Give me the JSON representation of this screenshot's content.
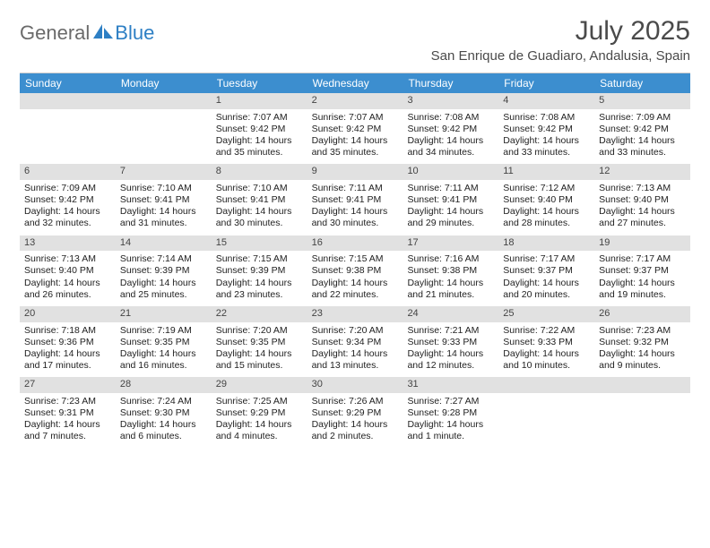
{
  "logo": {
    "text1": "General",
    "text2": "Blue"
  },
  "title": "July 2025",
  "location": "San Enrique de Guadiaro, Andalusia, Spain",
  "colors": {
    "header_bg": "#3c8ecf",
    "daynum_bg": "#e1e1e1",
    "logo_gray": "#6a6a6a",
    "logo_blue": "#2d7fc4"
  },
  "day_names": [
    "Sunday",
    "Monday",
    "Tuesday",
    "Wednesday",
    "Thursday",
    "Friday",
    "Saturday"
  ],
  "weeks": [
    [
      {
        "n": "",
        "sr": "",
        "ss": "",
        "dl": ""
      },
      {
        "n": "",
        "sr": "",
        "ss": "",
        "dl": ""
      },
      {
        "n": "1",
        "sr": "Sunrise: 7:07 AM",
        "ss": "Sunset: 9:42 PM",
        "dl": "Daylight: 14 hours and 35 minutes."
      },
      {
        "n": "2",
        "sr": "Sunrise: 7:07 AM",
        "ss": "Sunset: 9:42 PM",
        "dl": "Daylight: 14 hours and 35 minutes."
      },
      {
        "n": "3",
        "sr": "Sunrise: 7:08 AM",
        "ss": "Sunset: 9:42 PM",
        "dl": "Daylight: 14 hours and 34 minutes."
      },
      {
        "n": "4",
        "sr": "Sunrise: 7:08 AM",
        "ss": "Sunset: 9:42 PM",
        "dl": "Daylight: 14 hours and 33 minutes."
      },
      {
        "n": "5",
        "sr": "Sunrise: 7:09 AM",
        "ss": "Sunset: 9:42 PM",
        "dl": "Daylight: 14 hours and 33 minutes."
      }
    ],
    [
      {
        "n": "6",
        "sr": "Sunrise: 7:09 AM",
        "ss": "Sunset: 9:42 PM",
        "dl": "Daylight: 14 hours and 32 minutes."
      },
      {
        "n": "7",
        "sr": "Sunrise: 7:10 AM",
        "ss": "Sunset: 9:41 PM",
        "dl": "Daylight: 14 hours and 31 minutes."
      },
      {
        "n": "8",
        "sr": "Sunrise: 7:10 AM",
        "ss": "Sunset: 9:41 PM",
        "dl": "Daylight: 14 hours and 30 minutes."
      },
      {
        "n": "9",
        "sr": "Sunrise: 7:11 AM",
        "ss": "Sunset: 9:41 PM",
        "dl": "Daylight: 14 hours and 30 minutes."
      },
      {
        "n": "10",
        "sr": "Sunrise: 7:11 AM",
        "ss": "Sunset: 9:41 PM",
        "dl": "Daylight: 14 hours and 29 minutes."
      },
      {
        "n": "11",
        "sr": "Sunrise: 7:12 AM",
        "ss": "Sunset: 9:40 PM",
        "dl": "Daylight: 14 hours and 28 minutes."
      },
      {
        "n": "12",
        "sr": "Sunrise: 7:13 AM",
        "ss": "Sunset: 9:40 PM",
        "dl": "Daylight: 14 hours and 27 minutes."
      }
    ],
    [
      {
        "n": "13",
        "sr": "Sunrise: 7:13 AM",
        "ss": "Sunset: 9:40 PM",
        "dl": "Daylight: 14 hours and 26 minutes."
      },
      {
        "n": "14",
        "sr": "Sunrise: 7:14 AM",
        "ss": "Sunset: 9:39 PM",
        "dl": "Daylight: 14 hours and 25 minutes."
      },
      {
        "n": "15",
        "sr": "Sunrise: 7:15 AM",
        "ss": "Sunset: 9:39 PM",
        "dl": "Daylight: 14 hours and 23 minutes."
      },
      {
        "n": "16",
        "sr": "Sunrise: 7:15 AM",
        "ss": "Sunset: 9:38 PM",
        "dl": "Daylight: 14 hours and 22 minutes."
      },
      {
        "n": "17",
        "sr": "Sunrise: 7:16 AM",
        "ss": "Sunset: 9:38 PM",
        "dl": "Daylight: 14 hours and 21 minutes."
      },
      {
        "n": "18",
        "sr": "Sunrise: 7:17 AM",
        "ss": "Sunset: 9:37 PM",
        "dl": "Daylight: 14 hours and 20 minutes."
      },
      {
        "n": "19",
        "sr": "Sunrise: 7:17 AM",
        "ss": "Sunset: 9:37 PM",
        "dl": "Daylight: 14 hours and 19 minutes."
      }
    ],
    [
      {
        "n": "20",
        "sr": "Sunrise: 7:18 AM",
        "ss": "Sunset: 9:36 PM",
        "dl": "Daylight: 14 hours and 17 minutes."
      },
      {
        "n": "21",
        "sr": "Sunrise: 7:19 AM",
        "ss": "Sunset: 9:35 PM",
        "dl": "Daylight: 14 hours and 16 minutes."
      },
      {
        "n": "22",
        "sr": "Sunrise: 7:20 AM",
        "ss": "Sunset: 9:35 PM",
        "dl": "Daylight: 14 hours and 15 minutes."
      },
      {
        "n": "23",
        "sr": "Sunrise: 7:20 AM",
        "ss": "Sunset: 9:34 PM",
        "dl": "Daylight: 14 hours and 13 minutes."
      },
      {
        "n": "24",
        "sr": "Sunrise: 7:21 AM",
        "ss": "Sunset: 9:33 PM",
        "dl": "Daylight: 14 hours and 12 minutes."
      },
      {
        "n": "25",
        "sr": "Sunrise: 7:22 AM",
        "ss": "Sunset: 9:33 PM",
        "dl": "Daylight: 14 hours and 10 minutes."
      },
      {
        "n": "26",
        "sr": "Sunrise: 7:23 AM",
        "ss": "Sunset: 9:32 PM",
        "dl": "Daylight: 14 hours and 9 minutes."
      }
    ],
    [
      {
        "n": "27",
        "sr": "Sunrise: 7:23 AM",
        "ss": "Sunset: 9:31 PM",
        "dl": "Daylight: 14 hours and 7 minutes."
      },
      {
        "n": "28",
        "sr": "Sunrise: 7:24 AM",
        "ss": "Sunset: 9:30 PM",
        "dl": "Daylight: 14 hours and 6 minutes."
      },
      {
        "n": "29",
        "sr": "Sunrise: 7:25 AM",
        "ss": "Sunset: 9:29 PM",
        "dl": "Daylight: 14 hours and 4 minutes."
      },
      {
        "n": "30",
        "sr": "Sunrise: 7:26 AM",
        "ss": "Sunset: 9:29 PM",
        "dl": "Daylight: 14 hours and 2 minutes."
      },
      {
        "n": "31",
        "sr": "Sunrise: 7:27 AM",
        "ss": "Sunset: 9:28 PM",
        "dl": "Daylight: 14 hours and 1 minute."
      },
      {
        "n": "",
        "sr": "",
        "ss": "",
        "dl": ""
      },
      {
        "n": "",
        "sr": "",
        "ss": "",
        "dl": ""
      }
    ]
  ]
}
